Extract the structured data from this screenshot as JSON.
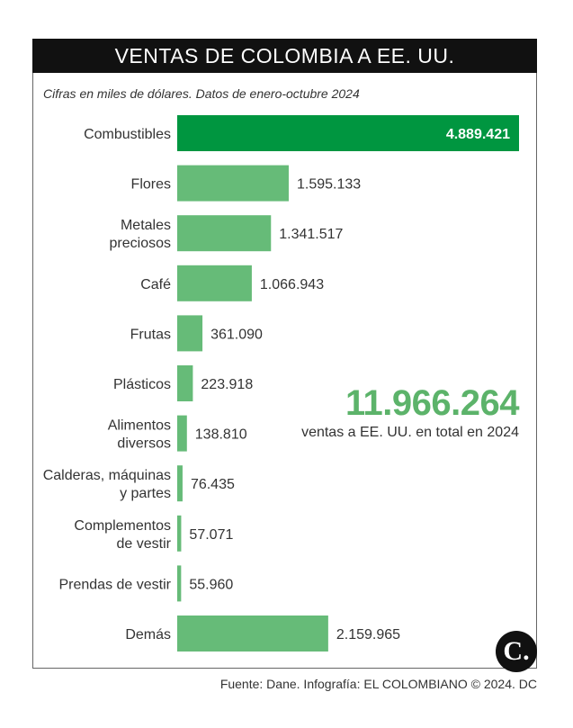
{
  "title": "VENTAS DE COLOMBIA A EE. UU.",
  "subtitle": "Cifras en miles de dólares. Datos de enero-octubre 2024",
  "total": {
    "value": "11.966.264",
    "caption": "ventas a EE. UU. en total en 2024"
  },
  "source": "Fuente: Dane. Infografía: EL COLOMBIANO © 2024. DC",
  "logo": {
    "text": "C.",
    "icon": "el-colombiano-logo"
  },
  "colors": {
    "highlight": "#009640",
    "bar": "#66bb78",
    "total": "#5cb36a",
    "title_bg": "#111111"
  },
  "chart_data": {
    "type": "bar",
    "orientation": "horizontal",
    "title": "VENTAS DE COLOMBIA A EE. UU.",
    "subtitle": "Cifras en miles de dólares. Datos de enero-octubre 2024",
    "categories": [
      [
        "Combustibles"
      ],
      [
        "Flores"
      ],
      [
        "Metales",
        "preciosos"
      ],
      [
        "Café"
      ],
      [
        "Frutas"
      ],
      [
        "Plásticos"
      ],
      [
        "Alimentos",
        "diversos"
      ],
      [
        "Calderas, máquinas",
        "y partes"
      ],
      [
        "Complementos",
        "de vestir"
      ],
      [
        "Prendas de vestir"
      ],
      [
        "Demás"
      ]
    ],
    "values": [
      4889421,
      1595133,
      1341517,
      1066943,
      361090,
      223918,
      138810,
      76435,
      57071,
      55960,
      2159965
    ],
    "value_labels": [
      "4.889.421",
      "1.595.133",
      "1.341.517",
      "1.066.943",
      "361.090",
      "223.918",
      "138.810",
      "76.435",
      "57.071",
      "55.960",
      "2.159.965"
    ],
    "highlight_index": 0,
    "xlim": [
      0,
      4889421
    ],
    "grid": false,
    "legend": "none"
  }
}
